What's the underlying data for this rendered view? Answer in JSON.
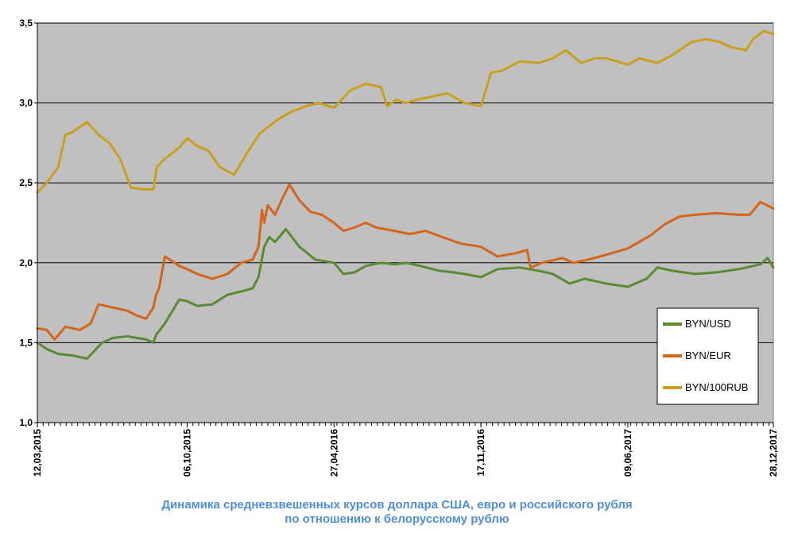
{
  "chart_data": {
    "type": "line",
    "caption_line1": "Динамика средневзвешенных курсов доллара США, евро и российского рубля",
    "caption_line2": "по отношению к белорусскому рублю",
    "xlabel": "",
    "ylabel": "",
    "ylim": [
      1.0,
      3.5
    ],
    "y_ticks": [
      "1,0",
      "1,5",
      "2,0",
      "2,5",
      "3,0",
      "3,5"
    ],
    "y_tick_values": [
      1.0,
      1.5,
      2.0,
      2.5,
      3.0,
      3.5
    ],
    "x_ticks": [
      "12,03,2015",
      "06,10,2015",
      "27,04,2016",
      "17,11,2016",
      "09,06,2017",
      "28,12,2017"
    ],
    "x_tick_values": [
      "2015-03-12",
      "2015-10-06",
      "2016-04-27",
      "2016-11-17",
      "2017-06-09",
      "2017-12-28"
    ],
    "xlim": [
      "2015-03-12",
      "2017-12-28"
    ],
    "grid": "horizontal",
    "plot_background": "#c0c0c0",
    "legend_position": "right",
    "series": [
      {
        "name": "BYN/USD",
        "color": "#5a8a32",
        "x": [
          "2015-03-12",
          "2015-03-25",
          "2015-04-10",
          "2015-04-30",
          "2015-05-20",
          "2015-06-10",
          "2015-06-25",
          "2015-07-15",
          "2015-07-28",
          "2015-08-10",
          "2015-08-20",
          "2015-08-24",
          "2015-09-05",
          "2015-09-25",
          "2015-10-06",
          "2015-10-20",
          "2015-11-10",
          "2015-12-01",
          "2015-12-20",
          "2016-01-05",
          "2016-01-13",
          "2016-01-21",
          "2016-01-28",
          "2016-02-05",
          "2016-02-20",
          "2016-03-10",
          "2016-04-01",
          "2016-04-27",
          "2016-05-10",
          "2016-05-25",
          "2016-06-10",
          "2016-07-01",
          "2016-07-20",
          "2016-08-05",
          "2016-08-25",
          "2016-09-20",
          "2016-10-10",
          "2016-10-25",
          "2016-11-17",
          "2016-12-10",
          "2017-01-10",
          "2017-02-05",
          "2017-02-25",
          "2017-03-20",
          "2017-04-10",
          "2017-05-10",
          "2017-06-09",
          "2017-07-05",
          "2017-07-20",
          "2017-08-10",
          "2017-09-10",
          "2017-10-10",
          "2017-11-10",
          "2017-12-10",
          "2017-12-20",
          "2017-12-28"
        ],
        "y": [
          1.5,
          1.46,
          1.43,
          1.42,
          1.4,
          1.5,
          1.53,
          1.54,
          1.53,
          1.52,
          1.5,
          1.55,
          1.62,
          1.77,
          1.76,
          1.73,
          1.74,
          1.8,
          1.82,
          1.84,
          1.91,
          2.1,
          2.16,
          2.13,
          2.21,
          2.1,
          2.02,
          2.0,
          1.93,
          1.94,
          1.98,
          2.0,
          1.99,
          2.0,
          1.98,
          1.95,
          1.94,
          1.93,
          1.91,
          1.96,
          1.97,
          1.95,
          1.93,
          1.87,
          1.9,
          1.87,
          1.85,
          1.9,
          1.97,
          1.95,
          1.93,
          1.94,
          1.96,
          1.99,
          2.03,
          1.97
        ]
      },
      {
        "name": "BYN/EUR",
        "color": "#d3651c",
        "x": [
          "2015-03-12",
          "2015-03-25",
          "2015-04-05",
          "2015-04-20",
          "2015-05-10",
          "2015-05-25",
          "2015-06-05",
          "2015-06-25",
          "2015-07-15",
          "2015-07-28",
          "2015-08-10",
          "2015-08-20",
          "2015-08-24",
          "2015-08-28",
          "2015-09-05",
          "2015-09-25",
          "2015-10-06",
          "2015-10-20",
          "2015-11-10",
          "2015-12-01",
          "2015-12-20",
          "2016-01-05",
          "2016-01-13",
          "2016-01-18",
          "2016-01-21",
          "2016-01-26",
          "2016-02-05",
          "2016-02-15",
          "2016-02-25",
          "2016-03-10",
          "2016-03-25",
          "2016-04-10",
          "2016-04-27",
          "2016-05-10",
          "2016-05-25",
          "2016-06-10",
          "2016-06-25",
          "2016-07-20",
          "2016-08-10",
          "2016-09-01",
          "2016-09-25",
          "2016-10-20",
          "2016-11-17",
          "2016-12-10",
          "2017-01-05",
          "2017-01-20",
          "2017-01-25",
          "2017-02-10",
          "2017-03-10",
          "2017-03-25",
          "2017-04-15",
          "2017-05-10",
          "2017-06-09",
          "2017-07-10",
          "2017-07-30",
          "2017-08-20",
          "2017-09-10",
          "2017-10-10",
          "2017-11-10",
          "2017-11-25",
          "2017-12-10",
          "2017-12-28"
        ],
        "y": [
          1.59,
          1.58,
          1.52,
          1.6,
          1.58,
          1.62,
          1.74,
          1.72,
          1.7,
          1.67,
          1.65,
          1.72,
          1.8,
          1.84,
          2.04,
          1.98,
          1.96,
          1.93,
          1.9,
          1.93,
          2.0,
          2.02,
          2.1,
          2.33,
          2.25,
          2.36,
          2.3,
          2.4,
          2.49,
          2.39,
          2.32,
          2.3,
          2.25,
          2.2,
          2.22,
          2.25,
          2.22,
          2.2,
          2.18,
          2.2,
          2.16,
          2.12,
          2.1,
          2.04,
          2.06,
          2.08,
          1.97,
          2.0,
          2.03,
          2.0,
          2.02,
          2.05,
          2.09,
          2.17,
          2.24,
          2.29,
          2.3,
          2.31,
          2.3,
          2.3,
          2.38,
          2.34
        ]
      },
      {
        "name": "BYN/100RUB",
        "color": "#c9a01e",
        "x": [
          "2015-03-12",
          "2015-03-25",
          "2015-04-10",
          "2015-04-20",
          "2015-05-01",
          "2015-05-10",
          "2015-05-20",
          "2015-06-05",
          "2015-06-20",
          "2015-07-05",
          "2015-07-20",
          "2015-08-05",
          "2015-08-20",
          "2015-08-25",
          "2015-09-05",
          "2015-09-25",
          "2015-10-06",
          "2015-10-20",
          "2015-11-05",
          "2015-11-20",
          "2015-12-10",
          "2015-12-30",
          "2016-01-15",
          "2016-01-21",
          "2016-02-10",
          "2016-03-01",
          "2016-03-20",
          "2016-04-05",
          "2016-04-27",
          "2016-05-20",
          "2016-06-10",
          "2016-07-01",
          "2016-07-10",
          "2016-07-22",
          "2016-08-05",
          "2016-08-20",
          "2016-09-10",
          "2016-10-01",
          "2016-10-25",
          "2016-11-17",
          "2016-12-01",
          "2016-12-15",
          "2017-01-10",
          "2017-02-05",
          "2017-02-25",
          "2017-03-15",
          "2017-04-05",
          "2017-04-25",
          "2017-05-10",
          "2017-06-09",
          "2017-06-25",
          "2017-07-20",
          "2017-08-10",
          "2017-09-05",
          "2017-09-25",
          "2017-10-15",
          "2017-10-30",
          "2017-11-20",
          "2017-11-30",
          "2017-12-15",
          "2017-12-28"
        ],
        "y": [
          2.44,
          2.5,
          2.6,
          2.8,
          2.82,
          2.85,
          2.88,
          2.8,
          2.75,
          2.65,
          2.47,
          2.46,
          2.46,
          2.6,
          2.65,
          2.72,
          2.78,
          2.73,
          2.7,
          2.6,
          2.55,
          2.7,
          2.81,
          2.83,
          2.9,
          2.95,
          2.98,
          3.0,
          2.97,
          3.08,
          3.12,
          3.1,
          2.98,
          3.02,
          3.0,
          3.02,
          3.04,
          3.06,
          3.0,
          2.98,
          3.19,
          3.2,
          3.26,
          3.25,
          3.28,
          3.33,
          3.25,
          3.28,
          3.28,
          3.24,
          3.28,
          3.25,
          3.3,
          3.38,
          3.4,
          3.38,
          3.35,
          3.33,
          3.4,
          3.45,
          3.43
        ]
      }
    ]
  }
}
